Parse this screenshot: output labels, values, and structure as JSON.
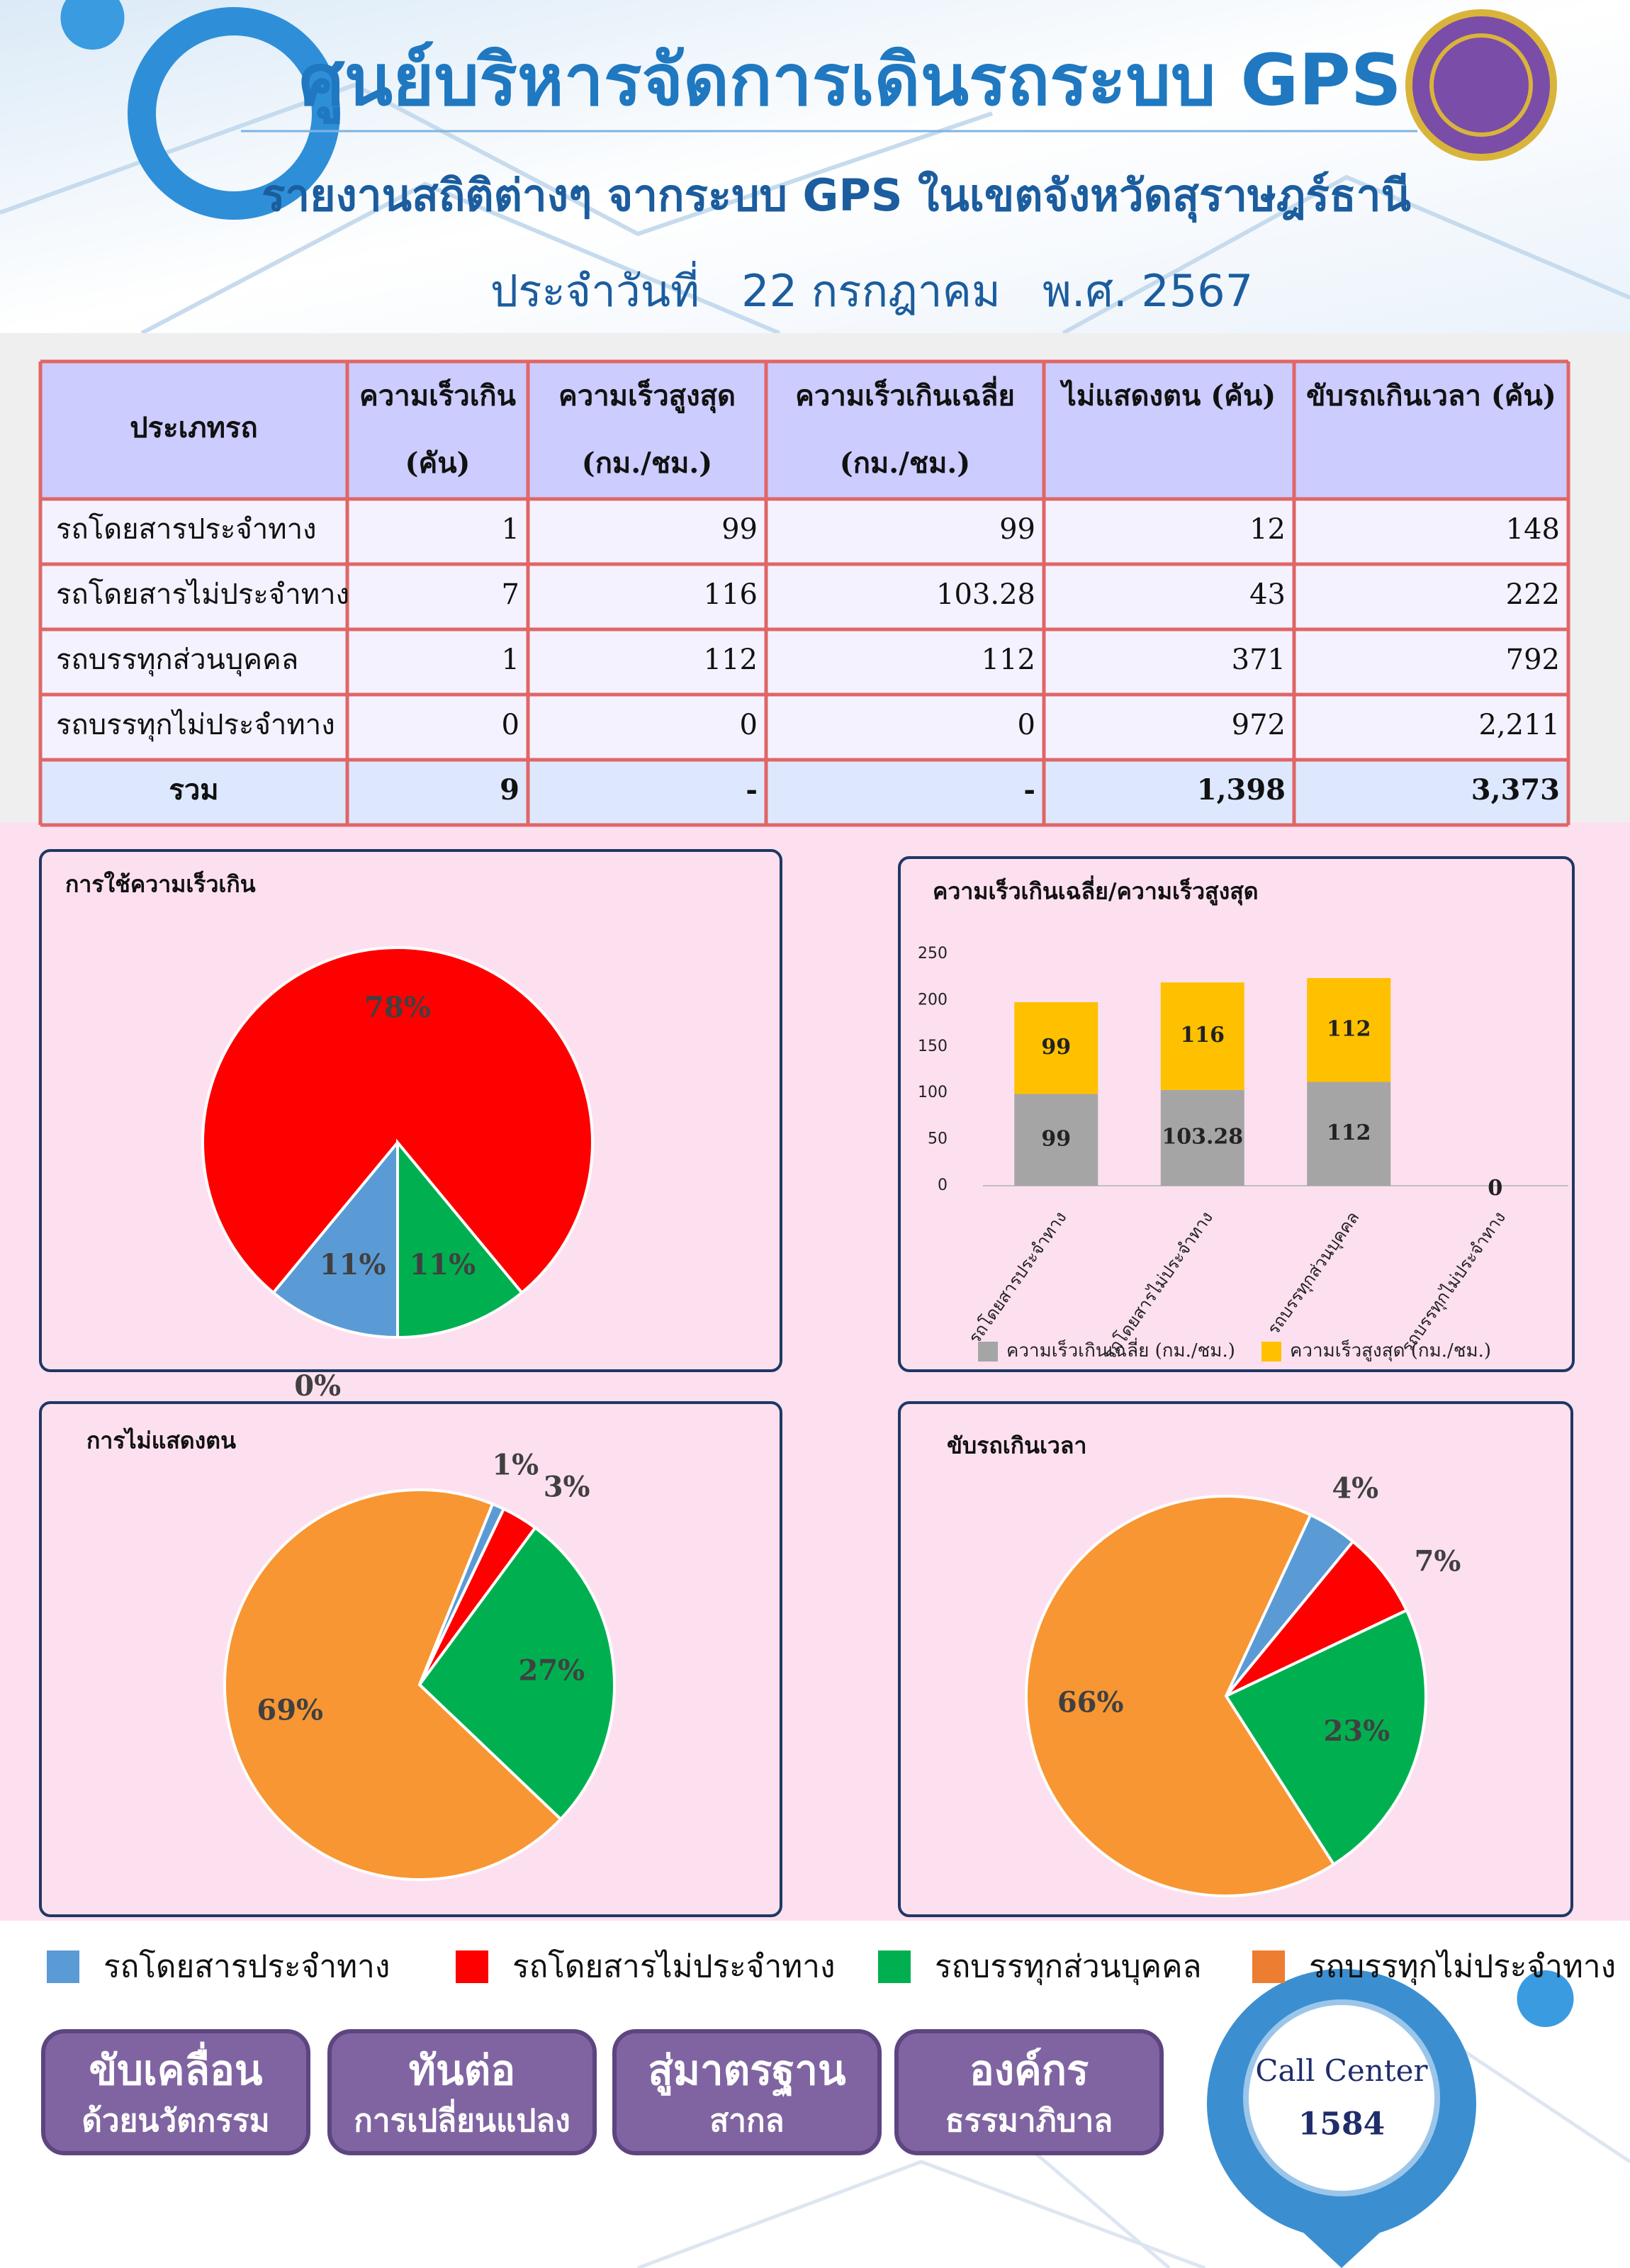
{
  "header": {
    "title": "ศูนย์บริหารจัดการเดินรถระบบ GPS",
    "subtitle": "รายงานสถิติต่างๆ จากระบบ GPS ในเขตจังหวัดสุราษฎร์ธานี",
    "date": "ประจำวันที่   22 กรกฎาคม   พ.ศ. 2567"
  },
  "table": {
    "headers": [
      [
        "ประเภทรถ"
      ],
      [
        "ความเร็วเกิน",
        "(คัน)"
      ],
      [
        "ความเร็วสูงสุด",
        "(กม./ชม.)"
      ],
      [
        "ความเร็วเกินเฉลี่ย",
        "(กม./ชม.)"
      ],
      [
        "ไม่แสดงตน (คัน)"
      ],
      [
        "ขับรถเกินเวลา (คัน)"
      ]
    ],
    "rows": [
      [
        "รถโดยสารประจำทาง",
        "1",
        "99",
        "99",
        "12",
        "148"
      ],
      [
        "รถโดยสารไม่ประจำทาง",
        "7",
        "116",
        "103.28",
        "43",
        "222"
      ],
      [
        "รถบรรทุกส่วนบุคคล",
        "1",
        "112",
        "112",
        "371",
        "792"
      ],
      [
        "รถบรรทุกไม่ประจำทาง",
        "0",
        "0",
        "0",
        "972",
        "2,211"
      ],
      [
        "รวม",
        "9",
        "-",
        "-",
        "1,398",
        "3,373"
      ]
    ]
  },
  "chart_data": [
    {
      "type": "pie",
      "title": "การใช้ความเร็วเกิน",
      "values": [
        11,
        78,
        11,
        0
      ],
      "value_labels": [
        "11%",
        "78%",
        "11%",
        "0%"
      ],
      "colors": [
        "#5b9bd5",
        "#ff0000",
        "#00b050",
        "#f79633"
      ]
    },
    {
      "type": "bar",
      "stacked": true,
      "title": "ความเร็วเกินเฉลี่ย/ความเร็วสูงสุด",
      "categories": [
        "รถโดยสารประจำทาง",
        "รถโดยสารไม่ประจำทาง",
        "รถบรรทุกส่วนบุคคล",
        "รถบรรทุกไม่ประจำทาง"
      ],
      "series": [
        {
          "name": "ความเร็วเกินเฉลี่ย (กม./ชม.)",
          "color": "#a5a5a5",
          "values": [
            99,
            103.28,
            112,
            0
          ]
        },
        {
          "name": "ความเร็วสูงสุด (กม./ชม.)",
          "color": "#ffc000",
          "values": [
            99,
            116,
            112,
            0
          ]
        }
      ],
      "ylim": [
        0,
        250
      ],
      "yticks": [
        0,
        50,
        100,
        150,
        200,
        250
      ],
      "grid": false
    },
    {
      "type": "pie",
      "title": "การไม่แสดงตน",
      "values": [
        1,
        3,
        27,
        69
      ],
      "value_labels": [
        "1%",
        "3%",
        "27%",
        "69%"
      ],
      "colors": [
        "#5b9bd5",
        "#ff0000",
        "#00b050",
        "#f79633"
      ]
    },
    {
      "type": "pie",
      "title": "ขับรถเกินเวลา",
      "values": [
        4,
        7,
        23,
        66
      ],
      "value_labels": [
        "4%",
        "7%",
        "23%",
        "66%"
      ],
      "colors": [
        "#5b9bd5",
        "#ff0000",
        "#00b050",
        "#f79633"
      ]
    }
  ],
  "legend": [
    {
      "name": "รถโดยสารประจำทาง",
      "color": "#5b9bd5"
    },
    {
      "name": "รถโดยสารไม่ประจำทาง",
      "color": "#ff0000"
    },
    {
      "name": "รถบรรทุกส่วนบุคคล",
      "color": "#00b050"
    },
    {
      "name": "รถบรรทุกไม่ประจำทาง",
      "color": "#ed7d31"
    }
  ],
  "footer": {
    "buttons": [
      [
        "ขับเคลื่อน",
        "ด้วยนวัตกรรม"
      ],
      [
        "ทันต่อ",
        "การเปลี่ยนแปลง"
      ],
      [
        "สู่มาตรฐาน",
        "สากล"
      ],
      [
        "องค์กร",
        "ธรรมาภิบาล"
      ]
    ],
    "call_center": {
      "label": "Call Center",
      "number": "1584"
    }
  }
}
